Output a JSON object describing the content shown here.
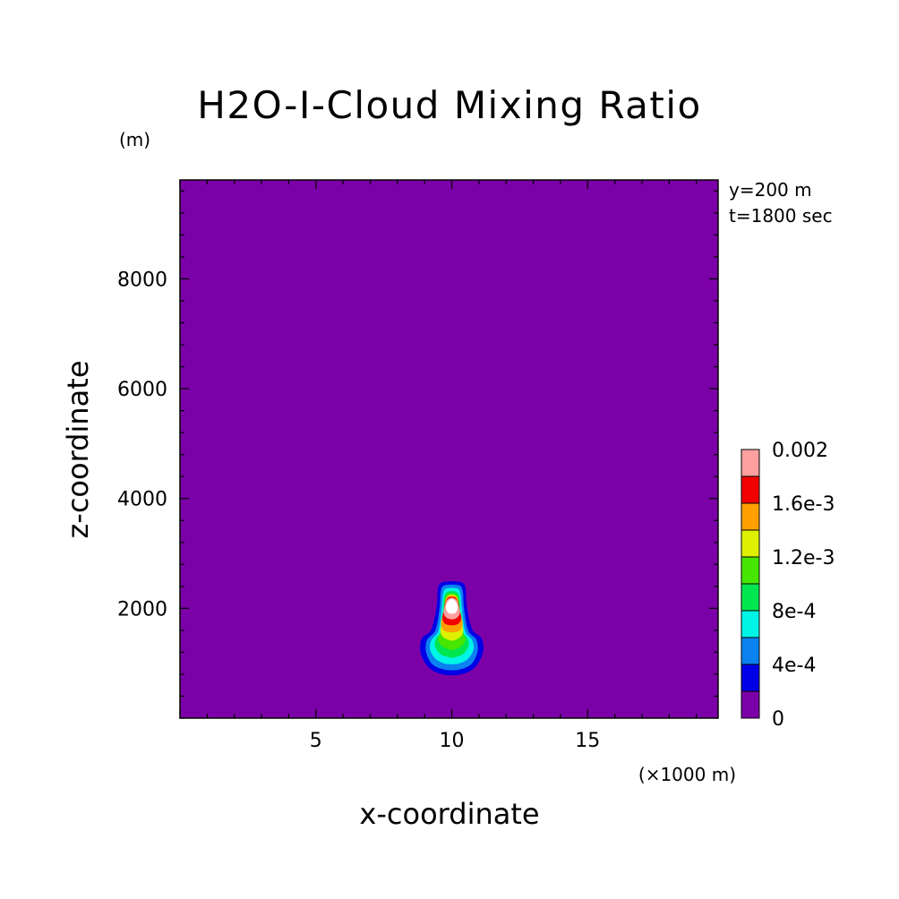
{
  "chart_data": {
    "type": "heatmap",
    "title": "H2O-I-Cloud Mixing Ratio",
    "xlabel": "x-coordinate",
    "ylabel": "z-coordinate",
    "x_unit": "(×1000 m)",
    "y_unit": "(m)",
    "annotations": [
      "y=200 m",
      "t=1800 sec"
    ],
    "xlim": [
      0,
      19.8
    ],
    "ylim": [
      0,
      9800
    ],
    "xticks": [
      5,
      10,
      15
    ],
    "yticks": [
      2000,
      4000,
      6000,
      8000
    ],
    "colorbar": {
      "min": 0,
      "max": 0.002,
      "step": 0.0002,
      "labels": [
        "0",
        "4e-4",
        "8e-4",
        "1.2e-3",
        "1.6e-3",
        "0.002"
      ],
      "colors": [
        "#7c00a8",
        "#0000e6",
        "#0a82f0",
        "#00f5e6",
        "#00e650",
        "#46e600",
        "#dcf000",
        "#ffa000",
        "#f00000",
        "#ff9f9f"
      ],
      "over_color": "#ffffff"
    },
    "field": {
      "description_free": true,
      "contours": [
        {
          "level": 0.0002,
          "points": [
            [
              9.1,
              950
            ],
            [
              9.5,
              820
            ],
            [
              10.0,
              780
            ],
            [
              10.5,
              820
            ],
            [
              10.9,
              950
            ],
            [
              11.15,
              1200
            ],
            [
              11.1,
              1450
            ],
            [
              10.75,
              1620
            ],
            [
              10.55,
              2050
            ],
            [
              10.5,
              2380
            ],
            [
              10.3,
              2480
            ],
            [
              9.7,
              2480
            ],
            [
              9.5,
              2380
            ],
            [
              9.45,
              2050
            ],
            [
              9.25,
              1620
            ],
            [
              8.9,
              1450
            ],
            [
              8.85,
              1200
            ]
          ]
        },
        {
          "level": 0.0004,
          "points": [
            [
              9.25,
              1000
            ],
            [
              9.6,
              900
            ],
            [
              10.0,
              870
            ],
            [
              10.4,
              900
            ],
            [
              10.75,
              1000
            ],
            [
              10.95,
              1220
            ],
            [
              10.9,
              1430
            ],
            [
              10.6,
              1600
            ],
            [
              10.45,
              2000
            ],
            [
              10.4,
              2320
            ],
            [
              10.25,
              2420
            ],
            [
              9.75,
              2420
            ],
            [
              9.6,
              2320
            ],
            [
              9.55,
              2000
            ],
            [
              9.4,
              1600
            ],
            [
              9.1,
              1430
            ],
            [
              9.05,
              1220
            ]
          ]
        },
        {
          "level": 0.0006,
          "points": [
            [
              9.4,
              1080
            ],
            [
              9.7,
              1000
            ],
            [
              10.0,
              980
            ],
            [
              10.3,
              1000
            ],
            [
              10.6,
              1080
            ],
            [
              10.8,
              1250
            ],
            [
              10.75,
              1420
            ],
            [
              10.5,
              1580
            ],
            [
              10.38,
              1950
            ],
            [
              10.32,
              2260
            ],
            [
              10.2,
              2360
            ],
            [
              9.8,
              2360
            ],
            [
              9.68,
              2260
            ],
            [
              9.62,
              1950
            ],
            [
              9.5,
              1580
            ],
            [
              9.25,
              1420
            ],
            [
              9.2,
              1250
            ]
          ]
        },
        {
          "level": 0.0008,
          "points": [
            [
              9.55,
              1180
            ],
            [
              9.8,
              1120
            ],
            [
              10.0,
              1100
            ],
            [
              10.2,
              1120
            ],
            [
              10.45,
              1180
            ],
            [
              10.62,
              1320
            ],
            [
              10.58,
              1450
            ],
            [
              10.4,
              1580
            ],
            [
              10.32,
              1900
            ],
            [
              10.28,
              2200
            ],
            [
              10.15,
              2300
            ],
            [
              9.85,
              2300
            ],
            [
              9.72,
              2200
            ],
            [
              9.68,
              1900
            ],
            [
              9.6,
              1580
            ],
            [
              9.42,
              1450
            ],
            [
              9.38,
              1320
            ]
          ]
        },
        {
          "level": 0.001,
          "points": [
            [
              9.62,
              1320
            ],
            [
              9.85,
              1260
            ],
            [
              10.0,
              1240
            ],
            [
              10.15,
              1260
            ],
            [
              10.38,
              1320
            ],
            [
              10.5,
              1430
            ],
            [
              10.42,
              1560
            ],
            [
              10.3,
              1700
            ],
            [
              10.28,
              1950
            ],
            [
              10.24,
              2180
            ],
            [
              10.12,
              2260
            ],
            [
              9.88,
              2260
            ],
            [
              9.76,
              2180
            ],
            [
              9.72,
              1950
            ],
            [
              9.7,
              1700
            ],
            [
              9.58,
              1560
            ],
            [
              9.5,
              1430
            ]
          ]
        },
        {
          "level": 0.0012,
          "points": [
            [
              9.68,
              1480
            ],
            [
              9.9,
              1420
            ],
            [
              10.0,
              1410
            ],
            [
              10.1,
              1420
            ],
            [
              10.32,
              1480
            ],
            [
              10.42,
              1580
            ],
            [
              10.38,
              1700
            ],
            [
              10.28,
              1820
            ],
            [
              10.26,
              2000
            ],
            [
              10.22,
              2170
            ],
            [
              10.1,
              2240
            ],
            [
              9.9,
              2240
            ],
            [
              9.78,
              2170
            ],
            [
              9.74,
              2000
            ],
            [
              9.72,
              1820
            ],
            [
              9.62,
              1700
            ],
            [
              9.58,
              1580
            ]
          ]
        },
        {
          "level": 0.0014,
          "points": [
            [
              9.7,
              1600
            ],
            [
              10.0,
              1560
            ],
            [
              10.3,
              1600
            ],
            [
              10.4,
              1720
            ],
            [
              10.35,
              1850
            ],
            [
              10.28,
              2000
            ],
            [
              10.22,
              2160
            ],
            [
              10.1,
              2220
            ],
            [
              9.9,
              2220
            ],
            [
              9.78,
              2160
            ],
            [
              9.72,
              2000
            ],
            [
              9.65,
              1850
            ],
            [
              9.6,
              1720
            ]
          ]
        },
        {
          "level": 0.0016,
          "points": [
            [
              9.75,
              1720
            ],
            [
              10.0,
              1690
            ],
            [
              10.25,
              1720
            ],
            [
              10.35,
              1820
            ],
            [
              10.3,
              1950
            ],
            [
              10.24,
              2100
            ],
            [
              10.12,
              2200
            ],
            [
              9.88,
              2200
            ],
            [
              9.76,
              2100
            ],
            [
              9.7,
              1950
            ],
            [
              9.65,
              1820
            ]
          ]
        },
        {
          "level": 0.0018,
          "points": [
            [
              9.8,
              1830
            ],
            [
              10.0,
              1800
            ],
            [
              10.2,
              1830
            ],
            [
              10.3,
              1920
            ],
            [
              10.25,
              2050
            ],
            [
              10.18,
              2150
            ],
            [
              10.05,
              2190
            ],
            [
              9.95,
              2190
            ],
            [
              9.82,
              2150
            ],
            [
              9.75,
              2050
            ],
            [
              9.7,
              1920
            ]
          ]
        },
        {
          "level": 0.002,
          "points": [
            [
              9.86,
              1920
            ],
            [
              10.0,
              1900
            ],
            [
              10.14,
              1920
            ],
            [
              10.22,
              2000
            ],
            [
              10.18,
              2100
            ],
            [
              10.06,
              2160
            ],
            [
              9.94,
              2160
            ],
            [
              9.82,
              2100
            ],
            [
              9.78,
              2000
            ]
          ]
        }
      ]
    }
  }
}
